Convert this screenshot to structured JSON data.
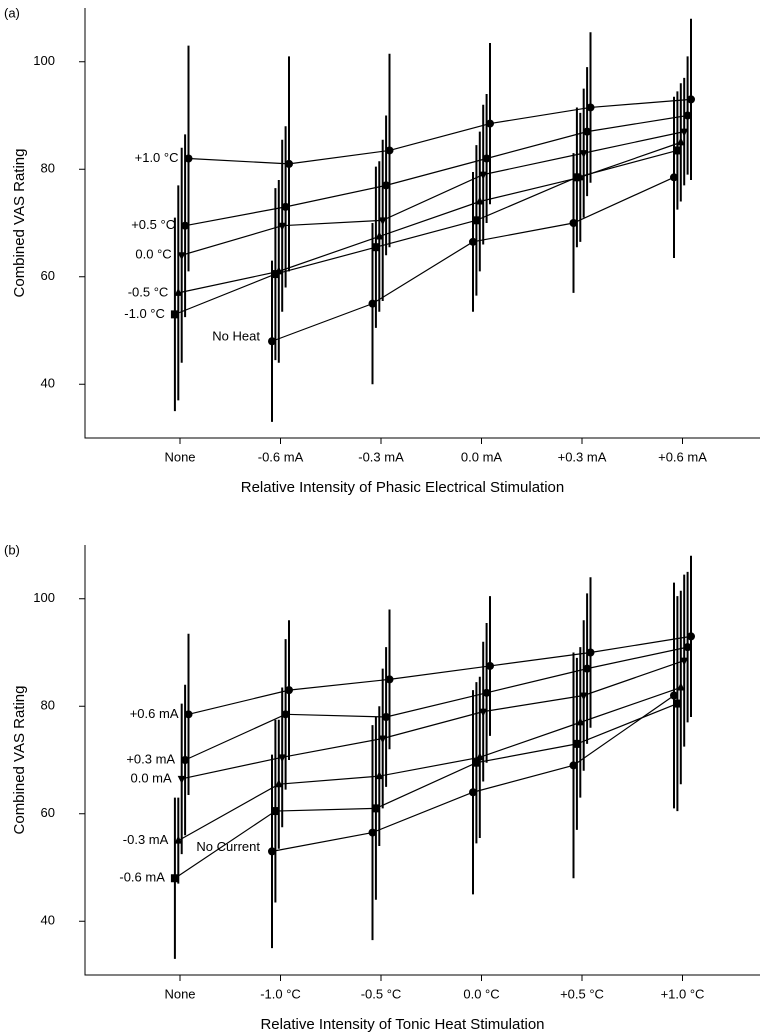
{
  "chart_data": [
    {
      "type": "line",
      "panel": "(a)",
      "ylabel": "Combined VAS Rating",
      "xlabel": "Relative Intensity of Phasic Electrical Stimulation",
      "categories": [
        "None",
        "-0.6 mA",
        "-0.3 mA",
        "0.0 mA",
        "+0.3 mA",
        "+0.6 mA"
      ],
      "ylim": [
        30,
        110
      ],
      "yticks": [
        40,
        60,
        80,
        100
      ],
      "series": [
        {
          "name": "No Heat",
          "color": "#000000",
          "marker": "circle",
          "values": [
            null,
            48,
            55,
            66.5,
            70,
            78.5
          ],
          "errors": [
            null,
            15,
            15,
            13,
            13,
            15
          ]
        },
        {
          "name": "-1.0 °C",
          "color": "#000000",
          "marker": "square",
          "values": [
            53,
            60.5,
            65.5,
            70.5,
            78.5,
            83.5
          ],
          "errors": [
            18,
            16,
            15,
            14,
            13,
            11
          ]
        },
        {
          "name": "-0.5 °C",
          "color": "#000000",
          "marker": "triangle-up",
          "values": [
            57,
            61,
            67.5,
            74,
            78.5,
            85
          ],
          "errors": [
            20,
            17,
            14,
            13,
            12,
            11
          ]
        },
        {
          "name": "0.0 °C",
          "color": "#000000",
          "marker": "triangle-down",
          "values": [
            64,
            69.5,
            70.5,
            79,
            83,
            87
          ],
          "errors": [
            20,
            16,
            15,
            13,
            12,
            10
          ]
        },
        {
          "name": "+0.5 °C",
          "color": "#000000",
          "marker": "circle",
          "values": [
            69.5,
            73,
            77,
            82,
            87,
            90
          ],
          "errors": [
            17,
            15,
            13,
            12,
            12,
            11
          ]
        },
        {
          "name": "+1.0 °C",
          "color": "#000000",
          "marker": "circle",
          "values": [
            82,
            81,
            83.5,
            88.5,
            91.5,
            93
          ],
          "errors": [
            21,
            20,
            18,
            15,
            14,
            15
          ]
        }
      ]
    },
    {
      "type": "line",
      "panel": "(b)",
      "ylabel": "Combined VAS Rating",
      "xlabel": "Relative Intensity of Tonic Heat Stimulation",
      "categories": [
        "None",
        "-1.0 °C",
        "-0.5 °C",
        "0.0 °C",
        "+0.5 °C",
        "+1.0 °C"
      ],
      "ylim": [
        30,
        110
      ],
      "yticks": [
        40,
        60,
        80,
        100
      ],
      "series": [
        {
          "name": "No Current",
          "color": "#000000",
          "marker": "circle",
          "values": [
            null,
            53,
            56.5,
            64,
            69,
            82
          ],
          "errors": [
            null,
            18,
            20,
            19,
            21,
            21
          ]
        },
        {
          "name": "-0.6 mA",
          "color": "#000000",
          "marker": "square",
          "values": [
            48,
            60.5,
            61,
            69.5,
            73,
            80.5
          ],
          "errors": [
            15,
            17,
            17,
            15,
            16,
            20
          ]
        },
        {
          "name": "-0.3 mA",
          "color": "#000000",
          "marker": "triangle-up",
          "values": [
            55,
            65.5,
            67,
            70.5,
            77,
            83.5
          ],
          "errors": [
            8,
            12,
            13,
            15,
            14,
            18
          ]
        },
        {
          "name": "0.0 mA",
          "color": "#000000",
          "marker": "triangle-down",
          "values": [
            66.5,
            70.5,
            74,
            79,
            82,
            88.5
          ],
          "errors": [
            14,
            13,
            13,
            13,
            14,
            16
          ]
        },
        {
          "name": "+0.3 mA",
          "color": "#000000",
          "marker": "circle",
          "values": [
            70,
            78.5,
            78,
            82.5,
            87,
            91
          ],
          "errors": [
            14,
            14,
            13,
            13,
            14,
            14
          ]
        },
        {
          "name": "+0.6 mA",
          "color": "#000000",
          "marker": "circle",
          "values": [
            78.5,
            83,
            85,
            87.5,
            90,
            93
          ],
          "errors": [
            15,
            13,
            13,
            13,
            14,
            15
          ]
        }
      ]
    }
  ]
}
